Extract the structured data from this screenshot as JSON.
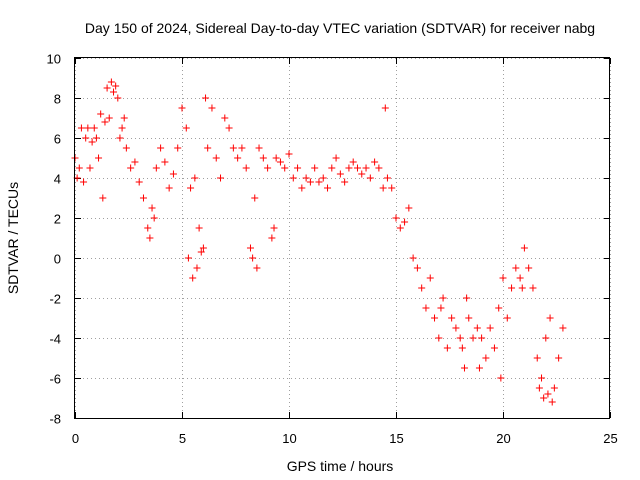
{
  "chart_data": {
    "type": "scatter",
    "title": "Day 150 of 2024, Sidereal Day-to-day VTEC variation (SDTVAR) for receiver nabg",
    "xlabel": "GPS time / hours",
    "ylabel": "SDTVAR / TECUs",
    "xlim": [
      0,
      25
    ],
    "ylim": [
      -8,
      10
    ],
    "xticks": [
      "0",
      "5",
      "10",
      "15",
      "20",
      "25"
    ],
    "yticks": [
      "-8",
      "-6",
      "-4",
      "-2",
      "0",
      "2",
      "4",
      "6",
      "8",
      "10"
    ],
    "grid": true,
    "marker": "plus",
    "color": "#ff0000",
    "series": [
      {
        "name": "SDTVAR",
        "x": [
          0.0,
          0.2,
          0.4,
          0.6,
          0.8,
          1.0,
          1.2,
          1.4,
          1.6,
          1.8,
          2.0,
          2.2,
          2.4,
          2.6,
          2.8,
          3.0,
          3.2,
          3.4,
          3.6,
          3.8,
          4.0,
          4.2,
          4.4,
          4.6,
          4.8,
          5.0,
          5.2,
          5.4,
          5.6,
          5.8,
          6.0,
          6.2,
          6.4,
          6.6,
          6.8,
          7.0,
          7.2,
          7.4,
          7.6,
          7.8,
          8.0,
          8.2,
          8.4,
          8.6,
          8.8,
          9.0,
          9.2,
          9.4,
          9.6,
          9.8,
          10.0,
          10.2,
          10.4,
          10.6,
          10.8,
          11.0,
          11.2,
          11.4,
          11.6,
          11.8,
          12.0,
          12.2,
          12.4,
          12.6,
          12.8,
          13.0,
          13.2,
          13.4,
          13.6,
          13.8,
          14.0,
          14.2,
          14.4,
          14.6,
          14.8,
          15.0,
          15.2,
          15.4,
          15.6,
          15.8,
          16.0,
          16.2,
          16.4,
          16.6,
          16.8,
          17.0,
          17.2,
          17.4,
          17.6,
          17.8,
          18.0,
          18.2,
          18.4,
          18.6,
          18.8,
          19.0,
          19.2,
          19.4,
          19.6,
          19.8,
          20.0,
          20.2,
          20.4,
          20.6,
          20.8,
          21.0,
          21.2,
          21.4,
          21.6,
          21.8,
          22.0,
          22.2,
          22.4,
          22.6,
          22.8,
          0.1,
          0.3,
          0.5,
          0.7,
          0.9,
          1.1,
          1.3,
          1.5,
          1.7,
          1.9,
          2.1,
          2.3,
          3.5,
          3.7,
          5.3,
          5.5,
          5.7,
          5.9,
          6.1,
          8.3,
          8.5,
          9.3,
          14.5,
          17.1,
          18.1,
          18.3,
          18.9,
          19.9,
          20.9,
          21.7,
          21.9,
          22.1,
          22.3
        ],
        "y": [
          5.0,
          4.5,
          3.8,
          6.5,
          5.8,
          6.0,
          7.2,
          6.8,
          7.0,
          8.3,
          8.0,
          6.5,
          5.5,
          4.5,
          4.8,
          3.8,
          3.0,
          1.5,
          2.5,
          4.5,
          5.5,
          4.8,
          3.5,
          4.2,
          5.5,
          7.5,
          6.5,
          3.5,
          4.0,
          1.5,
          0.5,
          5.5,
          7.5,
          5.0,
          4.0,
          7.0,
          6.5,
          5.5,
          5.0,
          5.5,
          4.5,
          0.5,
          3.0,
          5.5,
          5.0,
          4.5,
          1.0,
          5.0,
          4.8,
          4.5,
          5.2,
          4.0,
          4.5,
          3.5,
          4.0,
          3.8,
          4.5,
          3.8,
          4.0,
          3.5,
          4.5,
          5.0,
          4.2,
          3.8,
          4.5,
          4.8,
          4.5,
          4.2,
          4.5,
          4.0,
          4.8,
          4.5,
          3.5,
          4.0,
          3.5,
          2.0,
          1.5,
          1.8,
          2.5,
          0.0,
          -0.5,
          -1.5,
          -2.5,
          -1.0,
          -3.0,
          -4.0,
          -2.0,
          -4.5,
          -3.0,
          -3.5,
          -4.0,
          -5.5,
          -3.0,
          -4.0,
          -3.5,
          -4.0,
          -5.0,
          -3.5,
          -4.5,
          -2.5,
          -1.0,
          -3.0,
          -1.5,
          -0.5,
          -1.0,
          0.5,
          -0.5,
          -1.5,
          -5.0,
          -6.0,
          -4.0,
          -3.0,
          -6.5,
          -5.0,
          -3.5,
          4.0,
          6.5,
          6.0,
          4.5,
          6.5,
          5.0,
          3.0,
          8.5,
          8.8,
          8.6,
          6.0,
          7.0,
          1.0,
          2.0,
          0.0,
          -1.0,
          -0.5,
          0.3,
          8.0,
          0.0,
          -0.5,
          1.5,
          7.5,
          -2.5,
          -4.5,
          -2.0,
          -5.5,
          -6.0,
          -1.5,
          -6.5,
          -7.0,
          -6.8,
          -7.2
        ]
      }
    ]
  }
}
